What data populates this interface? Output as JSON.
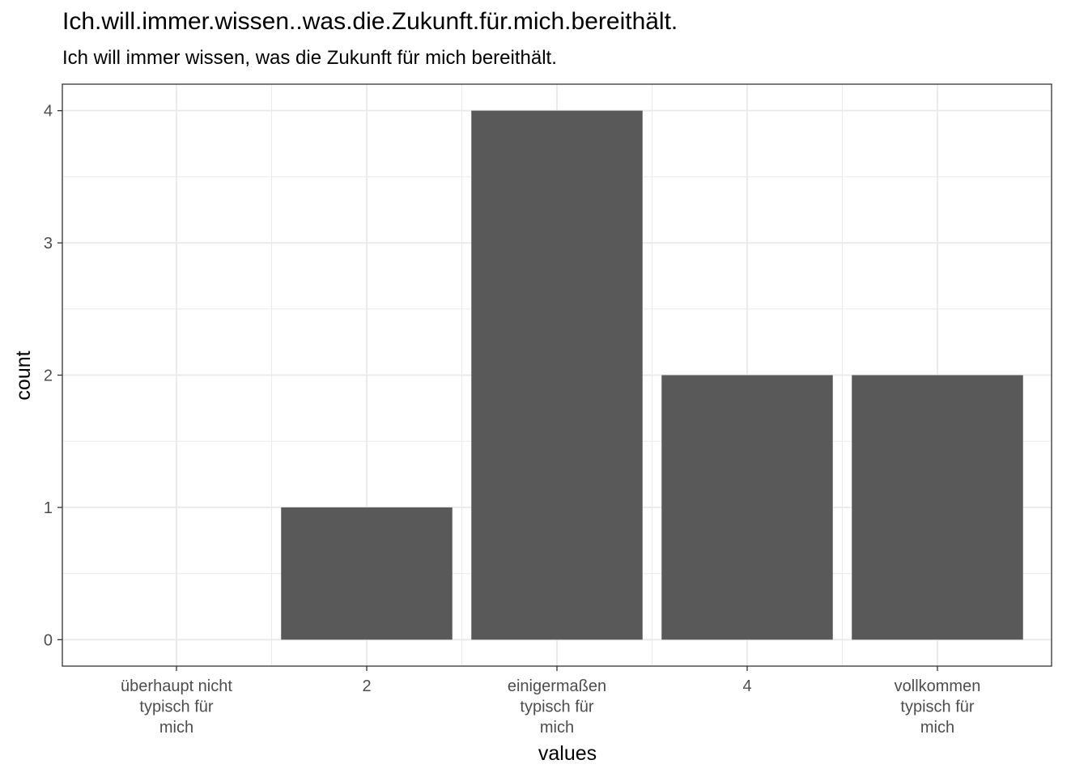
{
  "chart_data": {
    "type": "bar",
    "title": "Ich.will.immer.wissen..was.die.Zukunft.für.mich.bereithält.",
    "subtitle": "Ich will immer wissen, was die Zukunft für mich bereithält.",
    "xlabel": "values",
    "ylabel": "count",
    "categories": [
      [
        "überhaupt nicht",
        "typisch für",
        "mich"
      ],
      [
        "2"
      ],
      [
        "einigermaßen",
        "typisch für",
        "mich"
      ],
      [
        "4"
      ],
      [
        "vollkommen",
        "typisch für",
        "mich"
      ]
    ],
    "values": [
      0,
      1,
      4,
      2,
      2
    ],
    "ylim": [
      -0.2,
      4.2
    ],
    "yticks": [
      "0",
      "1",
      "2",
      "3",
      "4"
    ],
    "grid": true,
    "bar_color": "#595959",
    "grid_color": "#ebebeb",
    "panel_border_color": "#333333"
  }
}
